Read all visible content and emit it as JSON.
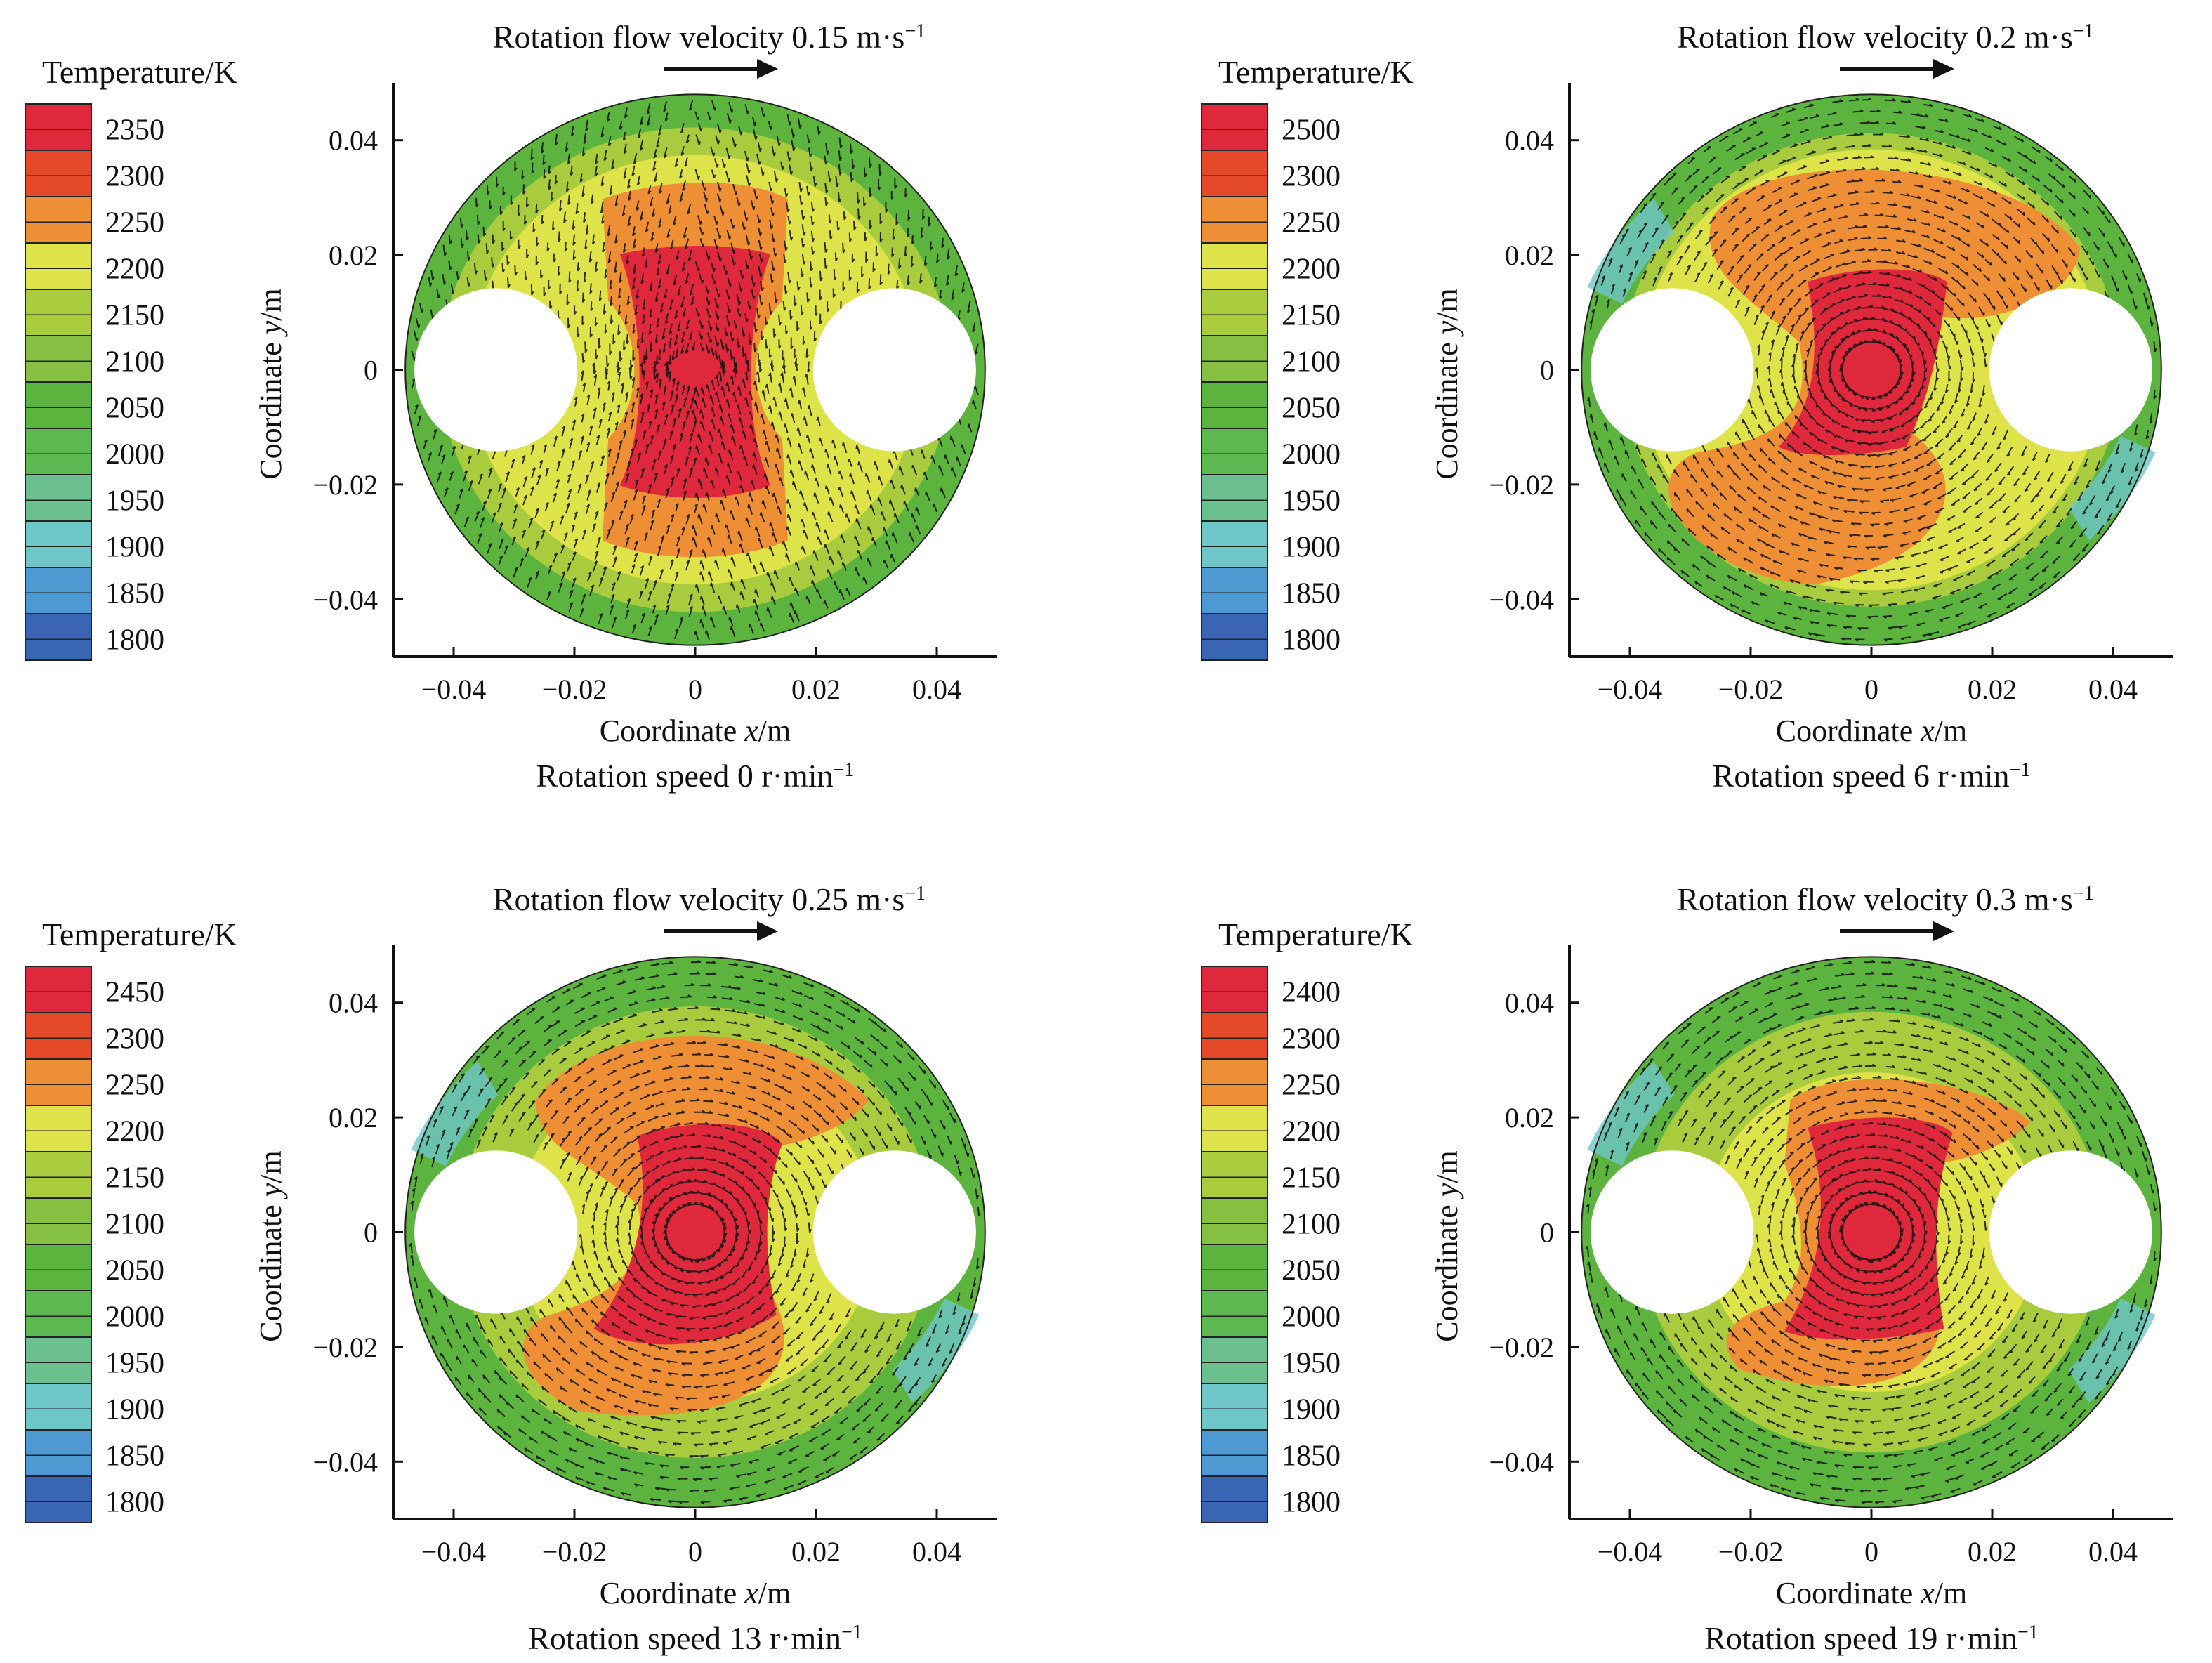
{
  "panel_titles": [
    {
      "text": "Rotation flow velocity 0.15 m·s",
      "sup": "−1"
    },
    {
      "text": "Rotation flow velocity 0.2 m·s",
      "sup": "−1"
    },
    {
      "text": "Rotation flow velocity 0.25 m·s",
      "sup": "−1"
    },
    {
      "text": "Rotation flow velocity 0.3 m·s",
      "sup": "−1"
    }
  ],
  "panel_captions": [
    {
      "text": "Rotation speed 0 r·min",
      "sup": "−1"
    },
    {
      "text": "Rotation speed 6 r·min",
      "sup": "−1"
    },
    {
      "text": "Rotation speed 13 r·min",
      "sup": "−1"
    },
    {
      "text": "Rotation speed 19 r·min",
      "sup": "−1"
    }
  ],
  "axis_labels": {
    "x": {
      "prefix": "Coordinate ",
      "var": "x",
      "suffix": "/m"
    },
    "y": {
      "prefix": "Coordinate ",
      "var": "y",
      "suffix": "/m"
    }
  },
  "legend_title": "Temperature/K",
  "colors": {
    "red": "#e0283c",
    "red_orange": "#e4492a",
    "orange": "#ee8e35",
    "yellow": "#dde348",
    "yellow_green": "#a8cc3e",
    "green_light": "#86c042",
    "green": "#5cb43e",
    "green_mid": "#5db852",
    "teal": "#6cc090",
    "cyan": "#6fc6c8",
    "blue_light": "#4e99d1",
    "blue": "#3a64b4",
    "blue_dark": "#344b9c",
    "arrow": "#111111"
  },
  "chart_data": [
    {
      "type": "heatmap",
      "description_of_field": "temperature contour with velocity vectors on annular cross-section",
      "title": "Rotation flow velocity 0.15 m·s−1",
      "caption": "Rotation speed 0 r·min−1",
      "rotation_speed_r_per_min": 0,
      "rotation_flow_velocity_m_per_s": 0.15,
      "xlabel": "Coordinate x/m",
      "ylabel": "Coordinate y/m",
      "xlim": [
        -0.05,
        0.05
      ],
      "ylim": [
        -0.05,
        0.05
      ],
      "x_ticks": [
        "−0.04",
        "−0.02",
        "0",
        "0.02",
        "0.04"
      ],
      "y_ticks": [
        "0.04",
        "0.02",
        "0",
        "−0.02",
        "−0.04"
      ],
      "legend_title": "Temperature/K",
      "legend_levels": [
        "2350",
        "2300",
        "2250",
        "2200",
        "2150",
        "2100",
        "2050",
        "2000",
        "1950",
        "1900",
        "1850",
        "1800"
      ],
      "domain_radius_m": 0.048,
      "holes": [
        {
          "x": -0.033,
          "y": 0,
          "r": 0.0135
        },
        {
          "x": 0.033,
          "y": 0,
          "r": 0.0135
        }
      ],
      "hot_core": "vertical band between holes"
    },
    {
      "type": "heatmap",
      "title": "Rotation flow velocity 0.2 m·s−1",
      "caption": "Rotation speed 6 r·min−1",
      "rotation_speed_r_per_min": 6,
      "rotation_flow_velocity_m_per_s": 0.2,
      "xlabel": "Coordinate x/m",
      "ylabel": "Coordinate y/m",
      "xlim": [
        -0.05,
        0.05
      ],
      "ylim": [
        -0.05,
        0.05
      ],
      "x_ticks": [
        "−0.04",
        "−0.02",
        "0",
        "0.02",
        "0.04"
      ],
      "y_ticks": [
        "0.04",
        "0.02",
        "0",
        "−0.02",
        "−0.04"
      ],
      "legend_title": "Temperature/K",
      "legend_levels": [
        "2500",
        "2300",
        "2250",
        "2200",
        "2150",
        "2100",
        "2050",
        "2000",
        "1950",
        "1900",
        "1850",
        "1800"
      ],
      "domain_radius_m": 0.048,
      "holes": [
        {
          "x": -0.033,
          "y": 0,
          "r": 0.0135
        },
        {
          "x": 0.033,
          "y": 0,
          "r": 0.0135
        }
      ],
      "hot_core": "twisted S-shaped band"
    },
    {
      "type": "heatmap",
      "title": "Rotation flow velocity 0.25 m·s−1",
      "caption": "Rotation speed 13 r·min−1",
      "rotation_speed_r_per_min": 13,
      "rotation_flow_velocity_m_per_s": 0.25,
      "xlabel": "Coordinate x/m",
      "ylabel": "Coordinate y/m",
      "xlim": [
        -0.05,
        0.05
      ],
      "ylim": [
        -0.05,
        0.05
      ],
      "x_ticks": [
        "−0.04",
        "−0.02",
        "0",
        "0.02",
        "0.04"
      ],
      "y_ticks": [
        "0.04",
        "0.02",
        "0",
        "−0.02",
        "−0.04"
      ],
      "legend_title": "Temperature/K",
      "legend_levels": [
        "2450",
        "2300",
        "2250",
        "2200",
        "2150",
        "2100",
        "2050",
        "2000",
        "1950",
        "1900",
        "1850",
        "1800"
      ],
      "domain_radius_m": 0.048,
      "holes": [
        {
          "x": -0.033,
          "y": 0,
          "r": 0.0135
        },
        {
          "x": 0.033,
          "y": 0,
          "r": 0.0135
        }
      ],
      "hot_core": "twisted S-shaped band"
    },
    {
      "type": "heatmap",
      "title": "Rotation flow velocity 0.3 m·s−1",
      "caption": "Rotation speed 19 r·min−1",
      "rotation_speed_r_per_min": 19,
      "rotation_flow_velocity_m_per_s": 0.3,
      "xlabel": "Coordinate x/m",
      "ylabel": "Coordinate y/m",
      "xlim": [
        -0.05,
        0.05
      ],
      "ylim": [
        -0.05,
        0.05
      ],
      "x_ticks": [
        "−0.04",
        "−0.02",
        "0",
        "0.02",
        "0.04"
      ],
      "y_ticks": [
        "0.04",
        "0.02",
        "0",
        "−0.02",
        "−0.04"
      ],
      "legend_title": "Temperature/K",
      "legend_levels": [
        "2400",
        "2300",
        "2250",
        "2200",
        "2150",
        "2100",
        "2050",
        "2000",
        "1950",
        "1900",
        "1850",
        "1800"
      ],
      "domain_radius_m": 0.048,
      "holes": [
        {
          "x": -0.033,
          "y": 0,
          "r": 0.0135
        },
        {
          "x": 0.033,
          "y": 0,
          "r": 0.0135
        }
      ],
      "hot_core": "twisted S-shaped band"
    }
  ]
}
